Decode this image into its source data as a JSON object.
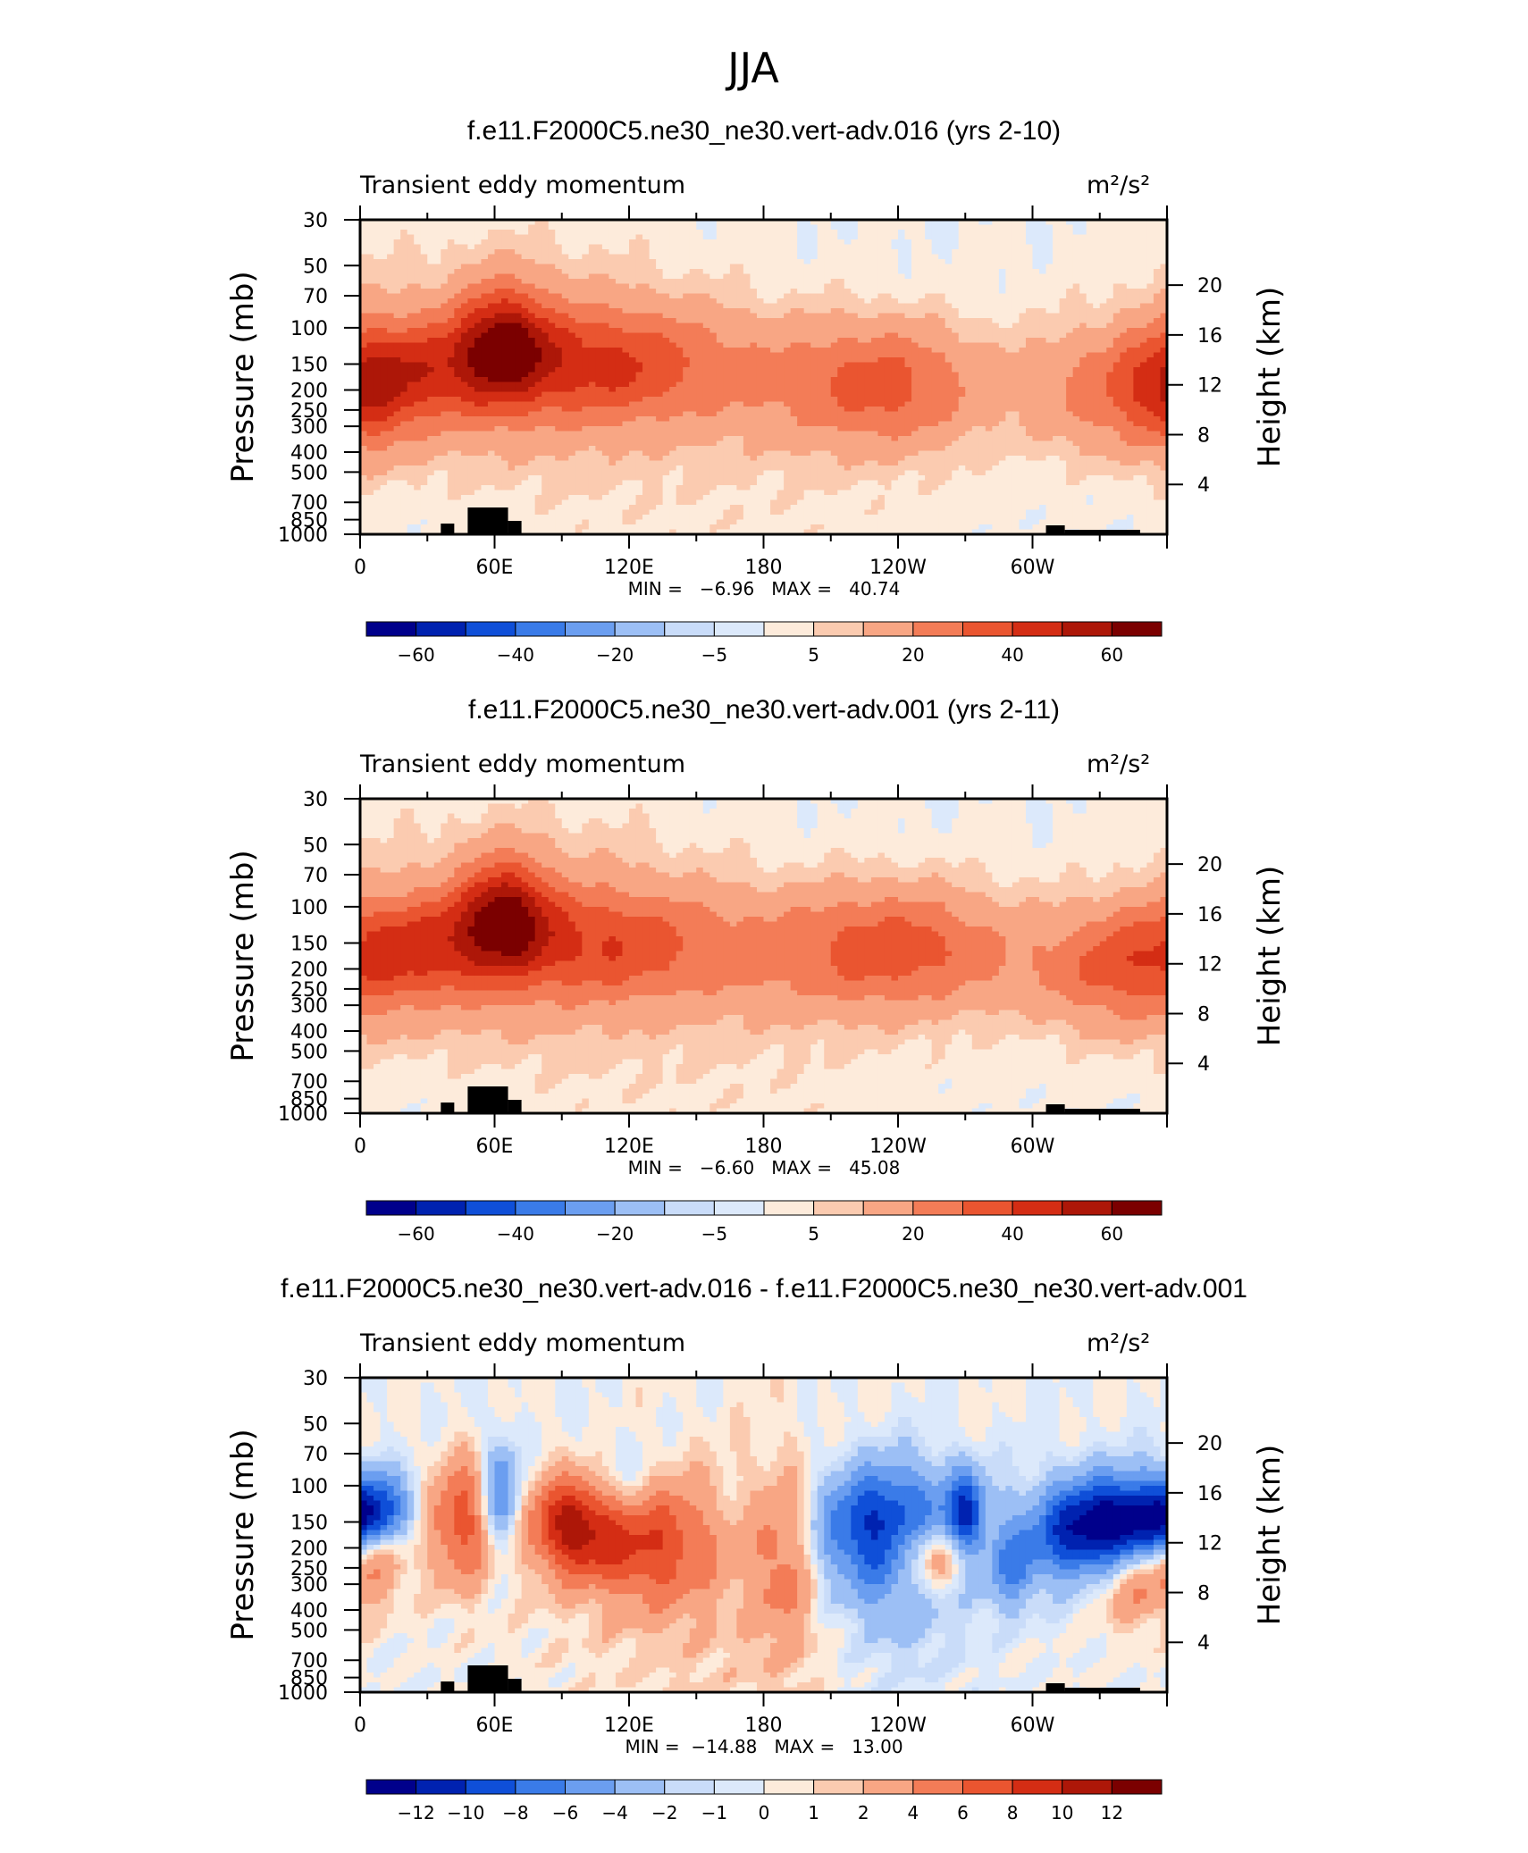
{
  "page_title": "JJA",
  "palette": [
    "#00008b",
    "#0022b0",
    "#0f4fd8",
    "#3a7be8",
    "#6b9ef0",
    "#9cbff5",
    "#c9dcf9",
    "#dce9fb",
    "#fdebdb",
    "#fbcbb0",
    "#f8a684",
    "#f37c57",
    "#ea5530",
    "#d42d14",
    "#ad1708",
    "#7b0000"
  ],
  "chart_data": [
    {
      "type": "heatmap",
      "title": "f.e11.F2000C5.ne30_ne30.vert-adv.016 (yrs 2-10)",
      "left_label": "Transient eddy momentum",
      "units": "m²/s²",
      "ylabel": "Pressure (mb)",
      "ylabel_right": "Height (km)",
      "xticks": [
        "0",
        "60E",
        "120E",
        "180",
        "120W",
        "60W"
      ],
      "yticks": [
        "30",
        "50",
        "70",
        "100",
        "150",
        "200",
        "250",
        "300",
        "400",
        "500",
        "700",
        "850",
        "1000"
      ],
      "yticks_right": [
        "20",
        "16",
        "12",
        "8",
        "4"
      ],
      "min_label": "MIN =   −6.96   MAX =   40.74",
      "colorbar_labels": [
        "−60",
        "−40",
        "−20",
        "−5",
        "5",
        "20",
        "40",
        "60"
      ],
      "levels": [
        -70,
        -60,
        -50,
        -40,
        -30,
        -20,
        -10,
        -5,
        0,
        5,
        10,
        20,
        30,
        40,
        50,
        60,
        70
      ],
      "features": [
        {
          "lon": 40,
          "p": 155,
          "amp": 30,
          "dlon": 28,
          "dp": 0.12
        },
        {
          "lon": 65,
          "p": 110,
          "amp": 36,
          "dlon": 14,
          "dp": 0.12
        },
        {
          "lon": 110,
          "p": 150,
          "amp": 35,
          "dlon": 35,
          "dp": 0.13
        },
        {
          "lon": 5,
          "p": 190,
          "amp": 22,
          "dlon": 14,
          "dp": 0.14
        },
        {
          "lon": 175,
          "p": 170,
          "amp": 10,
          "dlon": 30,
          "dp": 0.15
        },
        {
          "lon": 235,
          "p": 190,
          "amp": 32,
          "dlon": 30,
          "dp": 0.14
        },
        {
          "lon": 340,
          "p": 200,
          "amp": 26,
          "dlon": 30,
          "dp": 0.14
        },
        {
          "lon": 60,
          "p": 250,
          "amp": 8,
          "dlon": 50,
          "dp": 0.18
        },
        {
          "lon": 160,
          "p": 500,
          "amp": 4,
          "dlon": 80,
          "dp": 0.35
        },
        {
          "lon": 60,
          "p": 60,
          "amp": 6,
          "dlon": 60,
          "dp": 0.16
        }
      ]
    },
    {
      "type": "heatmap",
      "title": "f.e11.F2000C5.ne30_ne30.vert-adv.001 (yrs 2-11)",
      "left_label": "Transient eddy momentum",
      "units": "m²/s²",
      "ylabel": "Pressure (mb)",
      "ylabel_right": "Height (km)",
      "xticks": [
        "0",
        "60E",
        "120E",
        "180",
        "120W",
        "60W"
      ],
      "yticks": [
        "30",
        "50",
        "70",
        "100",
        "150",
        "200",
        "250",
        "300",
        "400",
        "500",
        "700",
        "850",
        "1000"
      ],
      "yticks_right": [
        "20",
        "16",
        "12",
        "8",
        "4"
      ],
      "min_label": "MIN =   −6.60   MAX =   45.08",
      "colorbar_labels": [
        "−60",
        "−40",
        "−20",
        "−5",
        "5",
        "20",
        "40",
        "60"
      ],
      "levels": [
        -70,
        -60,
        -50,
        -40,
        -30,
        -20,
        -10,
        -5,
        0,
        5,
        10,
        20,
        30,
        40,
        50,
        60,
        70
      ],
      "features": [
        {
          "lon": 30,
          "p": 150,
          "amp": 32,
          "dlon": 30,
          "dp": 0.12
        },
        {
          "lon": 65,
          "p": 105,
          "amp": 42,
          "dlon": 14,
          "dp": 0.12
        },
        {
          "lon": 110,
          "p": 150,
          "amp": 32,
          "dlon": 35,
          "dp": 0.13
        },
        {
          "lon": 240,
          "p": 160,
          "amp": 34,
          "dlon": 35,
          "dp": 0.14
        },
        {
          "lon": 340,
          "p": 200,
          "amp": 28,
          "dlon": 30,
          "dp": 0.14
        },
        {
          "lon": 175,
          "p": 170,
          "amp": 10,
          "dlon": 30,
          "dp": 0.15
        },
        {
          "lon": 60,
          "p": 250,
          "amp": 8,
          "dlon": 50,
          "dp": 0.18
        },
        {
          "lon": 160,
          "p": 500,
          "amp": 4,
          "dlon": 80,
          "dp": 0.35
        },
        {
          "lon": 70,
          "p": 55,
          "amp": 6,
          "dlon": 60,
          "dp": 0.16
        }
      ]
    },
    {
      "type": "heatmap",
      "title": "f.e11.F2000C5.ne30_ne30.vert-adv.016 - f.e11.F2000C5.ne30_ne30.vert-adv.001",
      "left_label": "Transient eddy momentum",
      "units": "m²/s²",
      "ylabel": "Pressure (mb)",
      "ylabel_right": "Height (km)",
      "xticks": [
        "0",
        "60E",
        "120E",
        "180",
        "120W",
        "60W"
      ],
      "yticks": [
        "30",
        "50",
        "70",
        "100",
        "150",
        "200",
        "250",
        "300",
        "400",
        "500",
        "700",
        "850",
        "1000"
      ],
      "yticks_right": [
        "20",
        "16",
        "12",
        "8",
        "4"
      ],
      "min_label": "MIN =  −14.88   MAX =   13.00",
      "colorbar_labels": [
        "−12",
        "−10",
        "−8",
        "−6",
        "−4",
        "−2",
        "−1",
        "0",
        "1",
        "2",
        "4",
        "6",
        "8",
        "10",
        "12"
      ],
      "levels": [
        -14,
        -12,
        -10,
        -8,
        -6,
        -4,
        -2,
        -1,
        0,
        1,
        2,
        4,
        6,
        8,
        10,
        12,
        14
      ],
      "features": [
        {
          "lon": 8,
          "p": 150,
          "amp": -10,
          "dlon": 10,
          "dp": 0.1
        },
        {
          "lon": 8,
          "p": 205,
          "amp": 8,
          "dlon": 10,
          "dp": 0.08
        },
        {
          "lon": 45,
          "p": 150,
          "amp": 7,
          "dlon": 10,
          "dp": 0.14
        },
        {
          "lon": 63,
          "p": 110,
          "amp": -7,
          "dlon": 6,
          "dp": 0.12
        },
        {
          "lon": 95,
          "p": 155,
          "amp": 10,
          "dlon": 14,
          "dp": 0.11
        },
        {
          "lon": 130,
          "p": 190,
          "amp": 7,
          "dlon": 20,
          "dp": 0.14
        },
        {
          "lon": 115,
          "p": 100,
          "amp": -3,
          "dlon": 12,
          "dp": 0.1
        },
        {
          "lon": 190,
          "p": 210,
          "amp": 5,
          "dlon": 10,
          "dp": 0.2
        },
        {
          "lon": 235,
          "p": 160,
          "amp": -11,
          "dlon": 24,
          "dp": 0.14
        },
        {
          "lon": 270,
          "p": 140,
          "amp": -8,
          "dlon": 6,
          "dp": 0.1
        },
        {
          "lon": 255,
          "p": 215,
          "amp": 9,
          "dlon": 12,
          "dp": 0.08
        },
        {
          "lon": 290,
          "p": 250,
          "amp": -5,
          "dlon": 8,
          "dp": 0.1
        },
        {
          "lon": 325,
          "p": 170,
          "amp": -13,
          "dlon": 18,
          "dp": 0.12
        },
        {
          "lon": 350,
          "p": 150,
          "amp": -9,
          "dlon": 14,
          "dp": 0.1
        },
        {
          "lon": 345,
          "p": 270,
          "amp": 7,
          "dlon": 16,
          "dp": 0.1
        },
        {
          "lon": 170,
          "p": 400,
          "amp": 1.5,
          "dlon": 60,
          "dp": 0.35
        },
        {
          "lon": 240,
          "p": 420,
          "amp": -2.5,
          "dlon": 25,
          "dp": 0.2
        }
      ]
    }
  ]
}
